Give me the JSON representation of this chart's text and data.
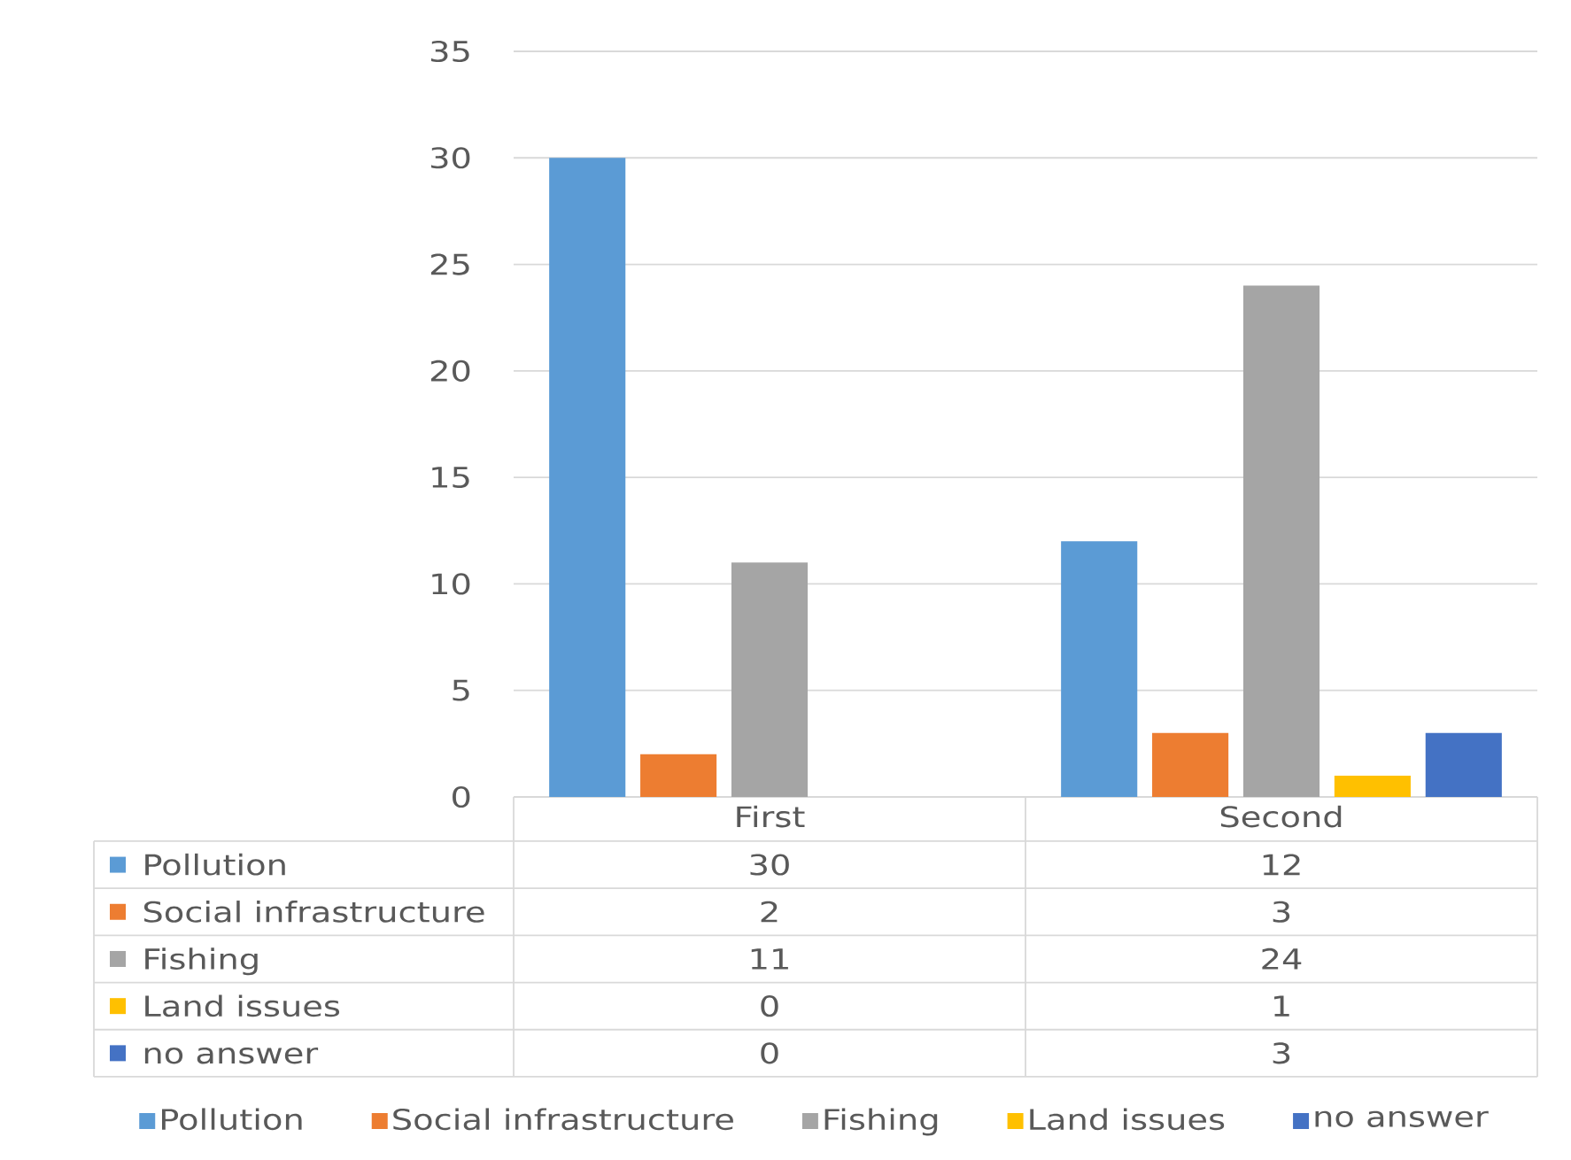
{
  "chart_data": {
    "type": "bar",
    "categories": [
      "First",
      "Second"
    ],
    "series": [
      {
        "name": "Pollution",
        "color": "#5b9bd5",
        "values": [
          30,
          12
        ]
      },
      {
        "name": "Social infrastructure",
        "color": "#ed7d31",
        "values": [
          2,
          3
        ]
      },
      {
        "name": "Fishing",
        "color": "#a5a5a5",
        "values": [
          11,
          24
        ]
      },
      {
        "name": "Land issues",
        "color": "#ffc000",
        "values": [
          0,
          1
        ]
      },
      {
        "name": "no answer",
        "color": "#4472c4",
        "values": [
          0,
          3
        ]
      }
    ],
    "ylim": [
      0,
      35
    ],
    "yticks": [
      0,
      5,
      10,
      15,
      20,
      25,
      30,
      35
    ],
    "grid": "y",
    "legend": "bottom",
    "data_labels": true
  }
}
